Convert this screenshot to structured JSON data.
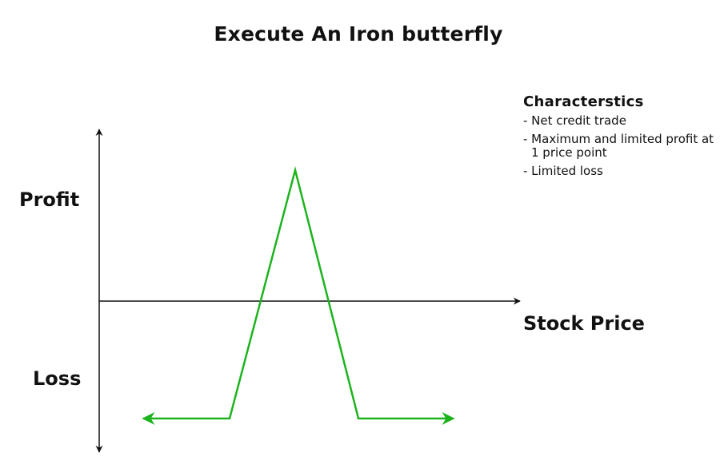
{
  "title": "Execute An Iron butterfly",
  "axes": {
    "y_positive_label": "Profit",
    "y_negative_label": "Loss",
    "x_label": "Stock Price"
  },
  "characteristics": {
    "heading": "Characterstics",
    "items": [
      "- Net credit trade",
      "- Maximum and limited profit at 1 price point",
      "- Limited loss"
    ]
  },
  "colors": {
    "payoff_line": "#1db31d",
    "axes": "#111111"
  }
}
